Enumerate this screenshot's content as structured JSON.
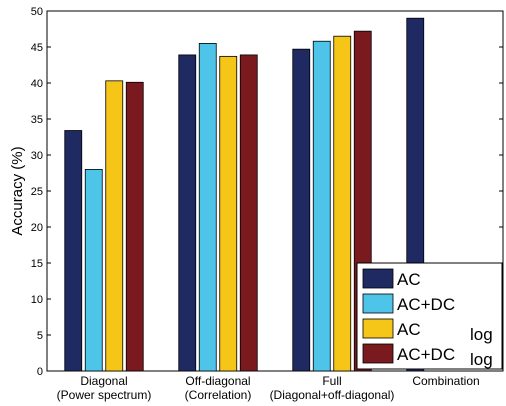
{
  "chart_data": {
    "type": "bar",
    "ylabel": "Accuracy (%)",
    "xlabel": "",
    "ylim": [
      0,
      50
    ],
    "yticks": [
      0,
      5,
      10,
      15,
      20,
      25,
      30,
      35,
      40,
      45,
      50
    ],
    "grid": false,
    "legend_position": "bottom-right",
    "categories": [
      {
        "line1": "Diagonal",
        "line2": "(Power spectrum)"
      },
      {
        "line1": "Off-diagonal",
        "line2": "(Correlation)"
      },
      {
        "line1": "Full",
        "line2": "(Diagonal+off-diagonal)"
      },
      {
        "line1": "Combination",
        "line2": ""
      }
    ],
    "series": [
      {
        "name": "AC",
        "sub": "",
        "color": "#1f2a63",
        "values": [
          33.4,
          43.9,
          44.7,
          49.0
        ]
      },
      {
        "name": "AC+DC",
        "sub": "",
        "color": "#4ec4e8",
        "values": [
          28.0,
          45.5,
          45.8,
          null
        ]
      },
      {
        "name": "AC",
        "sub": "log",
        "color": "#f5c518",
        "values": [
          40.3,
          43.7,
          46.5,
          null
        ]
      },
      {
        "name": "AC+DC",
        "sub": "log",
        "color": "#7a1a1f",
        "values": [
          40.1,
          43.9,
          47.2,
          null
        ]
      }
    ]
  }
}
